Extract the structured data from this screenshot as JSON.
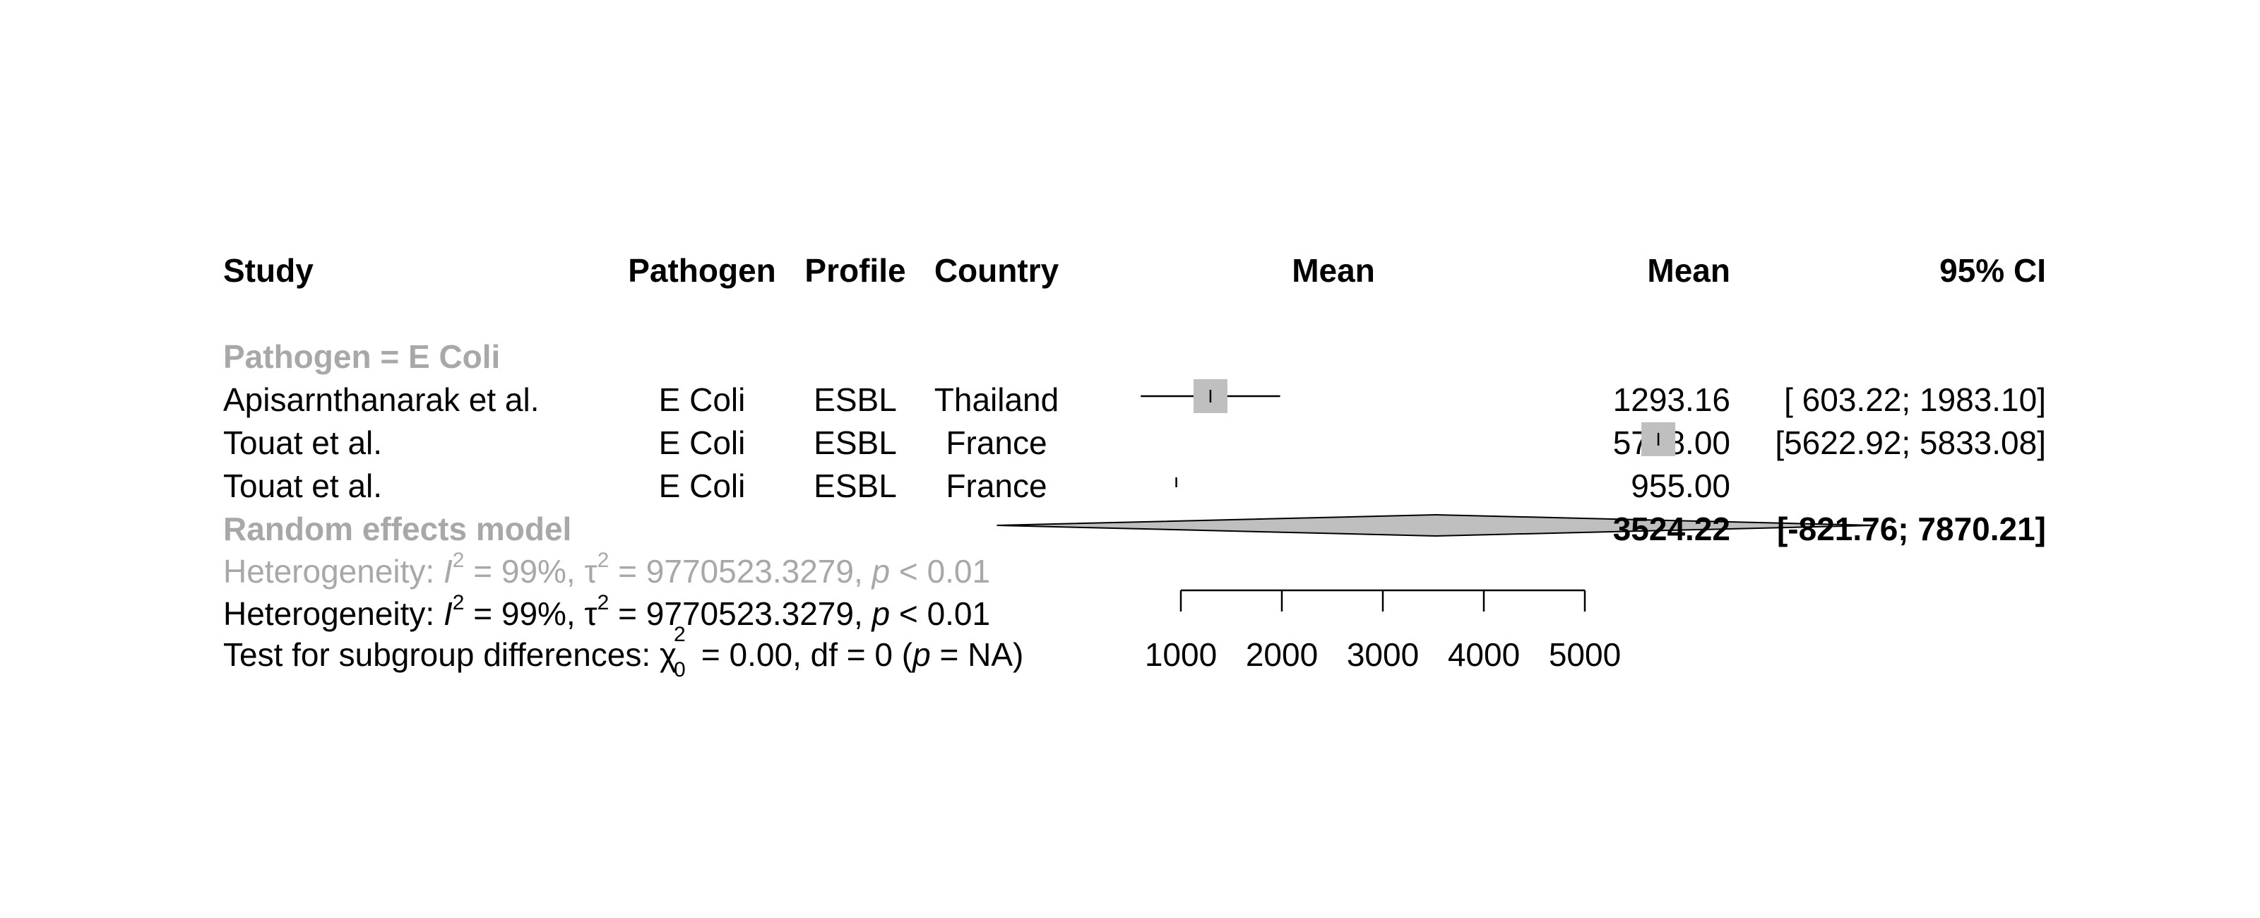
{
  "header": {
    "study": "Study",
    "pathogen": "Pathogen",
    "profile": "Profile",
    "country": "Country",
    "mean_plot": "Mean",
    "mean": "Mean",
    "ci": "95% CI"
  },
  "subgroup_label": "Pathogen = E Coli",
  "studies": [
    {
      "study": "Apisarnthanarak et al.",
      "pathogen": "E Coli",
      "profile": "ESBL",
      "country": "Thailand",
      "mean_text": "1293.16",
      "ci_text": "[ 603.22; 1983.10]"
    },
    {
      "study": "Touat et al.",
      "pathogen": "E Coli",
      "profile": "ESBL",
      "country": "France",
      "mean_text": "5728.00",
      "ci_text": "[5622.92; 5833.08]"
    },
    {
      "study": "Touat et al.",
      "pathogen": "E Coli",
      "profile": "ESBL",
      "country": "France",
      "mean_text": "955.00",
      "ci_text": ""
    }
  ],
  "random_model": {
    "label": "Random effects model",
    "mean_text": "3524.22",
    "ci_text": "[-821.76; 7870.21]"
  },
  "heterogeneity_subgroup": {
    "prefix": "Heterogeneity: ",
    "i": "I",
    "sup_i": "2",
    "mid": " = 99%, τ",
    "sup_tau": "2",
    "rest": " = 9770523.3279, ",
    "p": "p",
    "tail": " < 0.01"
  },
  "heterogeneity_overall": {
    "prefix": "Heterogeneity: ",
    "i": "I",
    "sup_i": "2",
    "mid": " = 99%, τ",
    "sup_tau": "2",
    "rest": " = 9770523.3279, ",
    "p": "p",
    "tail": " < 0.01"
  },
  "subgroup_test": {
    "prefix": "Test for subgroup differences: ",
    "chi": "χ",
    "sup": "2",
    "sub": "0",
    "rest": " = 0.00, df = 0 (",
    "p": "p",
    "tail": " = NA)"
  },
  "colors": {
    "grey_text": "#a8a8a8",
    "square_fill": "#bfbfbf",
    "diamond_fill": "#bfbfbf"
  },
  "chart_data": {
    "type": "forest",
    "x_ticks": [
      1000,
      2000,
      3000,
      4000,
      5000
    ],
    "xlim": [
      1000,
      5000
    ],
    "studies": [
      {
        "name": "Apisarnthanarak et al.",
        "mean": 1293.16,
        "lower": 603.22,
        "upper": 1983.1,
        "weight": 0.34
      },
      {
        "name": "Touat et al.",
        "mean": 5728.0,
        "lower": 5622.92,
        "upper": 5833.08,
        "weight": 0.33
      },
      {
        "name": "Touat et al.",
        "mean": 955.0,
        "lower": 955.0,
        "upper": 955.0,
        "weight": 0.33
      }
    ],
    "pooled": {
      "name": "Random effects model",
      "mean": 3524.22,
      "lower": -821.76,
      "upper": 7870.21
    }
  }
}
